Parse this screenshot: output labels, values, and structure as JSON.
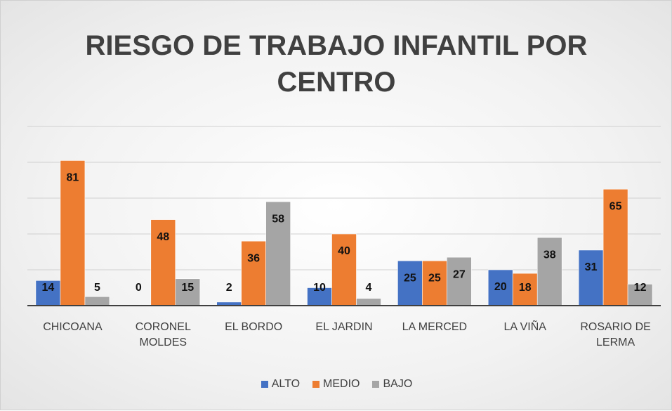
{
  "chart_data": {
    "type": "bar",
    "title": "RIESGO DE TRABAJO INFANTIL POR CENTRO",
    "categories": [
      "CHICOANA",
      "CORONEL MOLDES",
      "EL BORDO",
      "EL JARDIN",
      "LA MERCED",
      "LA VIÑA",
      "ROSARIO DE LERMA"
    ],
    "series": [
      {
        "name": "ALTO",
        "color": "#4472c4",
        "values": [
          14,
          0,
          2,
          10,
          25,
          20,
          31
        ]
      },
      {
        "name": "MEDIO",
        "color": "#ed7d31",
        "values": [
          81,
          48,
          36,
          40,
          25,
          18,
          65
        ]
      },
      {
        "name": "BAJO",
        "color": "#a5a5a5",
        "values": [
          5,
          15,
          58,
          4,
          27,
          38,
          12
        ]
      }
    ],
    "ylim": [
      0,
      100
    ],
    "yticks": [
      0,
      20,
      40,
      60,
      80,
      100
    ],
    "grid": true,
    "legend": "bottom"
  }
}
